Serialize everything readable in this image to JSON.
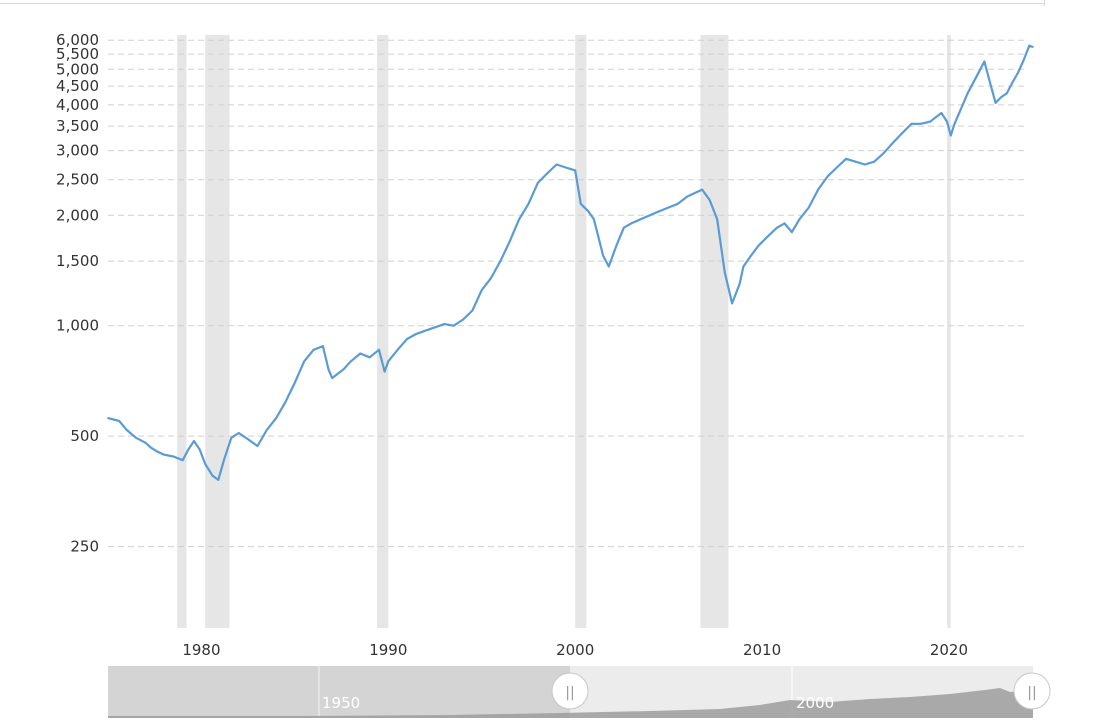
{
  "chart_data": {
    "type": "line",
    "title": "",
    "xlabel": "",
    "ylabel": "",
    "y_scale": "log",
    "xlim": [
      1975.0,
      2024.5
    ],
    "ylim": [
      150,
      6200
    ],
    "y_ticks": [
      {
        "value": 250,
        "label": "250"
      },
      {
        "value": 500,
        "label": "500"
      },
      {
        "value": 1000,
        "label": "1,000"
      },
      {
        "value": 1500,
        "label": "1,500"
      },
      {
        "value": 2000,
        "label": "2,000"
      },
      {
        "value": 2500,
        "label": "2,500"
      },
      {
        "value": 3000,
        "label": "3,000"
      },
      {
        "value": 3500,
        "label": "3,500"
      },
      {
        "value": 4000,
        "label": "4,000"
      },
      {
        "value": 4500,
        "label": "4,500"
      },
      {
        "value": 5000,
        "label": "5,000"
      },
      {
        "value": 5500,
        "label": "5,500"
      },
      {
        "value": 6000,
        "label": "6,000"
      }
    ],
    "x_ticks": [
      {
        "value": 1980,
        "label": "1980"
      },
      {
        "value": 1990,
        "label": "1990"
      },
      {
        "value": 2000,
        "label": "2000"
      },
      {
        "value": 2010,
        "label": "2010"
      },
      {
        "value": 2020,
        "label": "2020"
      }
    ],
    "grid": true,
    "line_color": "#5b9bd5",
    "recession_color": "#e6e6e6",
    "recessions": [
      {
        "start": 1978.7,
        "end": 1979.2
      },
      {
        "start": 1980.2,
        "end": 1981.5
      },
      {
        "start": 1989.4,
        "end": 1990.0
      },
      {
        "start": 2000.0,
        "end": 2000.6
      },
      {
        "start": 2006.7,
        "end": 2008.2
      },
      {
        "start": 2019.9,
        "end": 2020.1
      }
    ],
    "series": [
      {
        "name": "",
        "x": [
          1975.0,
          1975.3,
          1975.6,
          1976.0,
          1976.5,
          1977.0,
          1977.3,
          1977.6,
          1978.0,
          1978.5,
          1979.0,
          1979.3,
          1979.6,
          1979.9,
          1980.2,
          1980.6,
          1980.9,
          1981.2,
          1981.6,
          1982.0,
          1982.5,
          1983.0,
          1983.5,
          1984.0,
          1984.5,
          1985.0,
          1985.5,
          1986.0,
          1986.5,
          1986.8,
          1987.0,
          1987.3,
          1987.6,
          1987.8,
          1988.0,
          1988.5,
          1989.0,
          1989.5,
          1989.8,
          1990.0,
          1990.5,
          1991.0,
          1991.5,
          1992.0,
          1992.5,
          1993.0,
          1993.5,
          1994.0,
          1994.5,
          1995.0,
          1995.5,
          1996.0,
          1996.5,
          1997.0,
          1997.5,
          1998.0,
          1998.5,
          1999.0,
          1999.5,
          2000.0,
          2000.3,
          2000.7,
          2001.0,
          2001.5,
          2001.8,
          2002.2,
          2002.6,
          2003.0,
          2003.5,
          2004.0,
          2004.5,
          2005.0,
          2005.5,
          2006.0,
          2006.4,
          2006.8,
          2007.2,
          2007.6,
          2008.0,
          2008.4,
          2008.8,
          2009.0,
          2009.4,
          2009.8,
          2010.3,
          2010.8,
          2011.2,
          2011.6,
          2012.0,
          2012.5,
          2013.0,
          2013.5,
          2014.0,
          2014.5,
          2015.0,
          2015.5,
          2016.0,
          2016.5,
          2017.0,
          2017.5,
          2018.0,
          2018.5,
          2019.0,
          2019.3,
          2019.6,
          2019.9,
          2020.1,
          2020.3,
          2020.6,
          2021.0,
          2021.5,
          2021.9,
          2022.2,
          2022.5,
          2022.8,
          2023.1,
          2023.4,
          2023.7,
          2024.0,
          2024.3,
          2024.5
        ],
        "values": [
          560,
          555,
          550,
          520,
          495,
          480,
          465,
          455,
          445,
          440,
          430,
          460,
          485,
          460,
          420,
          390,
          380,
          430,
          495,
          510,
          490,
          470,
          520,
          560,
          620,
          700,
          800,
          860,
          880,
          760,
          720,
          740,
          760,
          780,
          800,
          840,
          820,
          860,
          750,
          800,
          860,
          920,
          950,
          970,
          990,
          1010,
          1000,
          1040,
          1100,
          1250,
          1350,
          1500,
          1700,
          1950,
          2150,
          2450,
          2600,
          2750,
          2700,
          2650,
          2150,
          2050,
          1950,
          1550,
          1450,
          1650,
          1850,
          1900,
          1950,
          2000,
          2050,
          2100,
          2150,
          2250,
          2300,
          2350,
          2200,
          1950,
          1400,
          1150,
          1300,
          1450,
          1550,
          1650,
          1750,
          1850,
          1900,
          1800,
          1950,
          2100,
          2350,
          2550,
          2700,
          2850,
          2800,
          2750,
          2800,
          2950,
          3150,
          3350,
          3550,
          3550,
          3600,
          3700,
          3800,
          3600,
          3300,
          3550,
          3850,
          4300,
          4800,
          5250,
          4600,
          4050,
          4200,
          4300,
          4600,
          4900,
          5300,
          5800,
          5750
        ]
      }
    ]
  },
  "navigator": {
    "labels": [
      {
        "value": 1950,
        "label": "1950"
      },
      {
        "value": 2000,
        "label": "2000"
      }
    ],
    "handle_glyph": "||"
  }
}
